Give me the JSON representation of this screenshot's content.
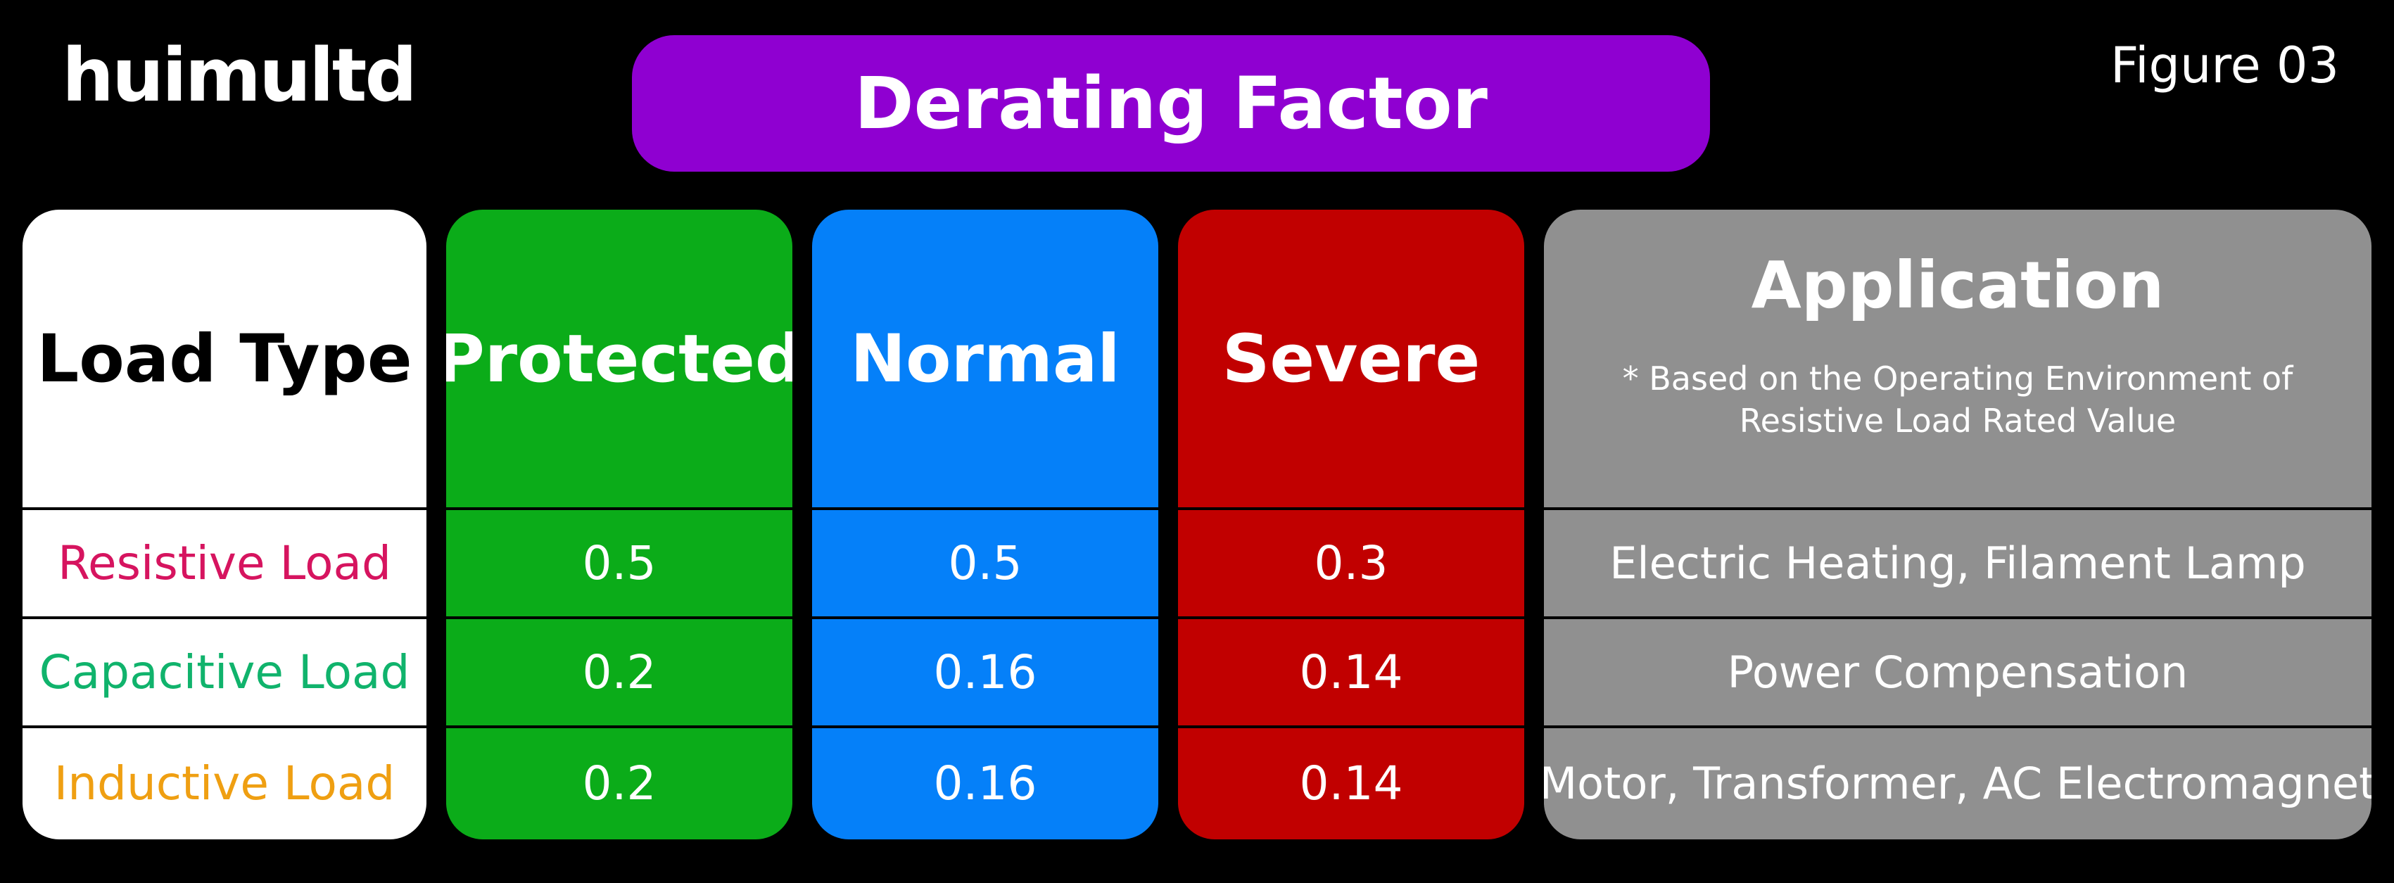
{
  "brand": {
    "logo_text": "huimultd",
    "figure_label": "Figure 03"
  },
  "title": "Derating Factor",
  "headers": {
    "load_type": "Load Type",
    "protected": "Protected",
    "normal": "Normal",
    "severe": "Severe",
    "application": "Application",
    "application_note_line1": "* Based on the Operating Environment of",
    "application_note_line2": "Resistive Load Rated Value"
  },
  "rows": [
    {
      "load": "Resistive Load",
      "protected": "0.5",
      "normal": "0.5",
      "severe": "0.3",
      "application": "Electric Heating, Filament Lamp"
    },
    {
      "load": "Capacitive Load",
      "protected": "0.2",
      "normal": "0.16",
      "severe": "0.14",
      "application": "Power Compensation"
    },
    {
      "load": "Inductive Load",
      "protected": "0.2",
      "normal": "0.16",
      "severe": "0.14",
      "application": "Motor, Transformer, AC Electromagnet"
    }
  ],
  "colors": {
    "title_bg": "#8f00d1",
    "protected_bg": "#0bac19",
    "normal_bg": "#0580f9",
    "severe_bg": "#c10000",
    "application_bg": "#909090",
    "resistive_text": "#d6145f",
    "capacitive_text": "#10b36c",
    "inductive_text": "#ef9f12"
  }
}
